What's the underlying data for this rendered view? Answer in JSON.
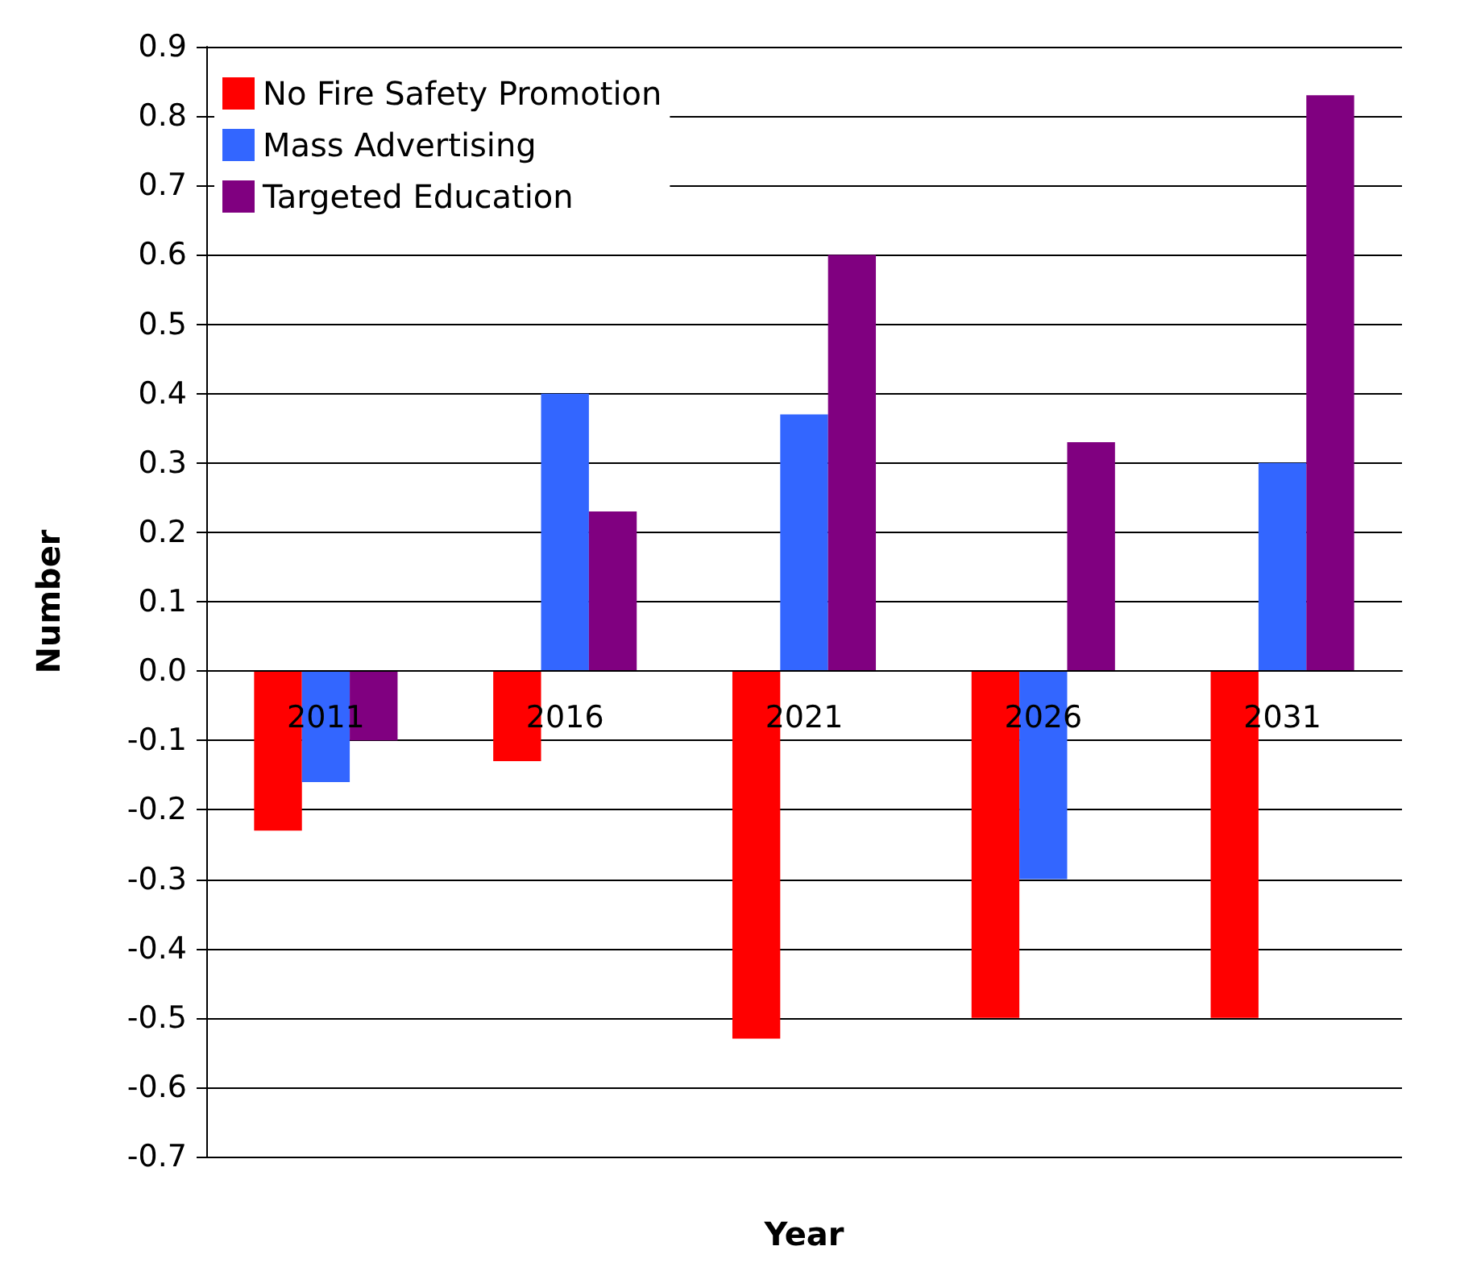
{
  "chart_data": {
    "type": "bar",
    "xlabel": "Year",
    "ylabel": "Number",
    "categories": [
      "2011",
      "2016",
      "2021",
      "2026",
      "2031"
    ],
    "series": [
      {
        "name": "No Fire Safety Promotion",
        "color": "#ff0000",
        "values": [
          -0.23,
          -0.13,
          -0.53,
          -0.5,
          -0.5
        ]
      },
      {
        "name": "Mass Advertising",
        "color": "#3366ff",
        "values": [
          -0.16,
          0.4,
          0.37,
          -0.3,
          0.3
        ]
      },
      {
        "name": "Targeted Education",
        "color": "#800080",
        "values": [
          -0.1,
          0.23,
          0.6,
          0.33,
          0.83
        ]
      }
    ],
    "ylim": [
      -0.7,
      0.9
    ],
    "yticks": [
      -0.7,
      -0.6,
      -0.5,
      -0.4,
      -0.3,
      -0.2,
      -0.1,
      {
        "value": 0,
        "label": "0.0"
      },
      0.1,
      0.2,
      0.3,
      0.4,
      0.5,
      0.6,
      0.7,
      0.8,
      0.9
    ],
    "grid": "y",
    "legend": "top left"
  }
}
